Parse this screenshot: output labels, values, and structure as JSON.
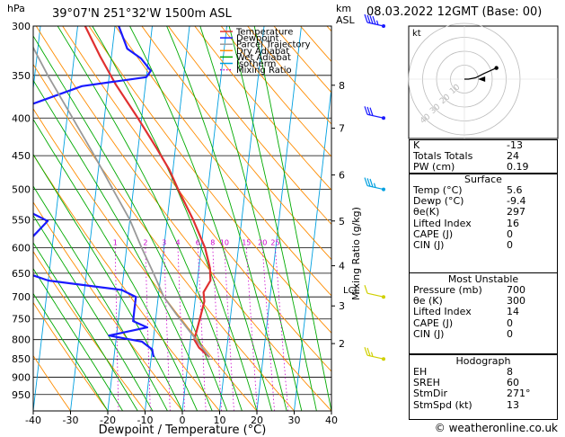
{
  "header": {
    "hpa_unit": "hPa",
    "location": "39°07'N  251°32'W  1500m  ASL",
    "km_unit": "km",
    "asl_unit": "ASL",
    "date": "08.03.2022  12GMT  (Base: 00)"
  },
  "legend": [
    {
      "label": "Temperature",
      "color": "#e03030",
      "style": "solid"
    },
    {
      "label": "Dewpoint",
      "color": "#1a1aff",
      "style": "solid"
    },
    {
      "label": "Parcel Trajectory",
      "color": "#999999",
      "style": "solid"
    },
    {
      "label": "Dry Adiabat",
      "color": "#ff8c00",
      "style": "solid"
    },
    {
      "label": "Wet Adiabat",
      "color": "#00aa00",
      "style": "solid"
    },
    {
      "label": "Isotherm",
      "color": "#00a0e0",
      "style": "solid"
    },
    {
      "label": "Mixing Ratio",
      "color": "#cc00cc",
      "style": "dotted"
    }
  ],
  "chart_data": {
    "type": "line",
    "title": "",
    "xlabel": "Dewpoint / Temperature (°C)",
    "ylabel": "hPa",
    "xlim": [
      -40,
      40
    ],
    "pressure_range": [
      300,
      1000
    ],
    "log_y": true,
    "x_ticks": [
      -40,
      -30,
      -20,
      -10,
      0,
      10,
      20,
      30,
      40
    ],
    "pressure_ticks": [
      300,
      350,
      400,
      450,
      500,
      550,
      600,
      650,
      700,
      750,
      800,
      850,
      900,
      950
    ],
    "km_ticks": [
      {
        "label": "8",
        "p": 361
      },
      {
        "label": "7",
        "p": 413
      },
      {
        "label": "6",
        "p": 478
      },
      {
        "label": "5",
        "p": 552
      },
      {
        "label": "4",
        "p": 635
      },
      {
        "label": "3",
        "p": 720
      },
      {
        "label": "2",
        "p": 810
      }
    ],
    "lcl": {
      "label": "LCL",
      "p": 684
    },
    "mixing_ratio_label": "Mixing Ratio (g/kg)",
    "mixing_ratio_lines": [
      {
        "label": "1",
        "value": 1
      },
      {
        "label": "2",
        "value": 2
      },
      {
        "label": "3",
        "value": 3
      },
      {
        "label": "4",
        "value": 4
      },
      {
        "label": "6",
        "value": 6
      },
      {
        "label": "8",
        "value": 8
      },
      {
        "label": "10",
        "value": 10
      },
      {
        "label": "15",
        "value": 15
      },
      {
        "label": "20",
        "value": 20
      },
      {
        "label": "25",
        "value": 25
      }
    ],
    "mixing_ratio_label_pressure": 600,
    "series": [
      {
        "name": "Temperature",
        "color": "#e03030",
        "points": [
          {
            "p": 845,
            "t": 5.6
          },
          {
            "p": 820,
            "t": 2.5
          },
          {
            "p": 800,
            "t": 1.0
          },
          {
            "p": 770,
            "t": 1.5
          },
          {
            "p": 740,
            "t": 2.0
          },
          {
            "p": 710,
            "t": 2.5
          },
          {
            "p": 690,
            "t": 2.0
          },
          {
            "p": 665,
            "t": 3.5
          },
          {
            "p": 640,
            "t": 3.0
          },
          {
            "p": 600,
            "t": 1.0
          },
          {
            "p": 550,
            "t": -3.0
          },
          {
            "p": 500,
            "t": -8.0
          },
          {
            "p": 470,
            "t": -11.0
          },
          {
            "p": 440,
            "t": -15.0
          },
          {
            "p": 400,
            "t": -21.0
          },
          {
            "p": 360,
            "t": -28.0
          },
          {
            "p": 330,
            "t": -33.0
          },
          {
            "p": 300,
            "t": -38.0
          }
        ]
      },
      {
        "name": "Dewpoint",
        "color": "#1a1aff",
        "points": [
          {
            "p": 845,
            "t": -9.4
          },
          {
            "p": 825,
            "t": -10.0
          },
          {
            "p": 805,
            "t": -13.0
          },
          {
            "p": 790,
            "t": -22.0
          },
          {
            "p": 770,
            "t": -12.0
          },
          {
            "p": 755,
            "t": -16.0
          },
          {
            "p": 730,
            "t": -16.0
          },
          {
            "p": 700,
            "t": -16.0
          },
          {
            "p": 685,
            "t": -20.0
          },
          {
            "p": 665,
            "t": -40.0
          },
          {
            "p": 645,
            "t": -48.0
          },
          {
            "p": 600,
            "t": -48.0
          },
          {
            "p": 552,
            "t": -42.0
          },
          {
            "p": 540,
            "t": -46.0
          },
          {
            "p": 505,
            "t": -52.0
          },
          {
            "p": 480,
            "t": -52.0
          },
          {
            "p": 420,
            "t": -52.0
          },
          {
            "p": 400,
            "t": -52.0
          },
          {
            "p": 390,
            "t": -54.0
          },
          {
            "p": 362,
            "t": -37.0
          },
          {
            "p": 352,
            "t": -20.0
          },
          {
            "p": 345,
            "t": -19.0
          },
          {
            "p": 332,
            "t": -22.0
          },
          {
            "p": 322,
            "t": -26.0
          },
          {
            "p": 300,
            "t": -29.0
          }
        ]
      },
      {
        "name": "Parcel Trajectory",
        "color": "#999999",
        "points": [
          {
            "p": 845,
            "t": 5.6
          },
          {
            "p": 790,
            "t": 0.5
          },
          {
            "p": 740,
            "t": -4.5
          },
          {
            "p": 700,
            "t": -8.5
          },
          {
            "p": 650,
            "t": -12.0
          },
          {
            "p": 600,
            "t": -16.0
          },
          {
            "p": 550,
            "t": -20.0
          },
          {
            "p": 500,
            "t": -25.5
          },
          {
            "p": 450,
            "t": -31.5
          },
          {
            "p": 400,
            "t": -38.5
          },
          {
            "p": 350,
            "t": -46.5
          },
          {
            "p": 300,
            "t": -55.0
          }
        ]
      }
    ],
    "wind_barbs": [
      {
        "p": 300,
        "speed_kt": 35,
        "color": "#1a1aff"
      },
      {
        "p": 400,
        "speed_kt": 30,
        "color": "#1a1aff"
      },
      {
        "p": 500,
        "speed_kt": 25,
        "color": "#00a0e0"
      },
      {
        "p": 700,
        "speed_kt": 10,
        "color": "#d0d000"
      },
      {
        "p": 850,
        "speed_kt": 15,
        "color": "#d0d000"
      }
    ]
  },
  "hodograph": {
    "unit": "kt",
    "ring_labels": [
      "10",
      "20",
      "30",
      "40"
    ],
    "points_kt": [
      {
        "u": 0,
        "v": 0
      },
      {
        "u": 3,
        "v": 0
      },
      {
        "u": 8,
        "v": 1
      },
      {
        "u": 14,
        "v": 4
      },
      {
        "u": 23,
        "v": 8
      }
    ],
    "storm_motion": {
      "u": 13,
      "v": 0
    }
  },
  "indices": [
    {
      "key": "K",
      "value": "-13"
    },
    {
      "key": "Totals Totals",
      "value": "24"
    },
    {
      "key": "PW (cm)",
      "value": "0.19"
    }
  ],
  "surface": {
    "title": "Surface",
    "rows": [
      {
        "key": "Temp (°C)",
        "value": "5.6"
      },
      {
        "key": "Dewp (°C)",
        "value": "-9.4"
      },
      {
        "key": "θe(K)",
        "value": "297"
      },
      {
        "key": "Lifted Index",
        "value": "16"
      },
      {
        "key": "CAPE (J)",
        "value": "0"
      },
      {
        "key": "CIN (J)",
        "value": "0"
      }
    ]
  },
  "most_unstable": {
    "title": "Most Unstable",
    "rows": [
      {
        "key": "Pressure (mb)",
        "value": "700"
      },
      {
        "key": "θe (K)",
        "value": "300"
      },
      {
        "key": "Lifted Index",
        "value": "14"
      },
      {
        "key": "CAPE (J)",
        "value": "0"
      },
      {
        "key": "CIN (J)",
        "value": "0"
      }
    ]
  },
  "hodograph_table": {
    "title": "Hodograph",
    "rows": [
      {
        "key": "EH",
        "value": "8"
      },
      {
        "key": "SREH",
        "value": "60"
      },
      {
        "key": "StmDir",
        "value": "271°"
      },
      {
        "key": "StmSpd (kt)",
        "value": "13"
      }
    ]
  },
  "footer": "© weatheronline.co.uk"
}
